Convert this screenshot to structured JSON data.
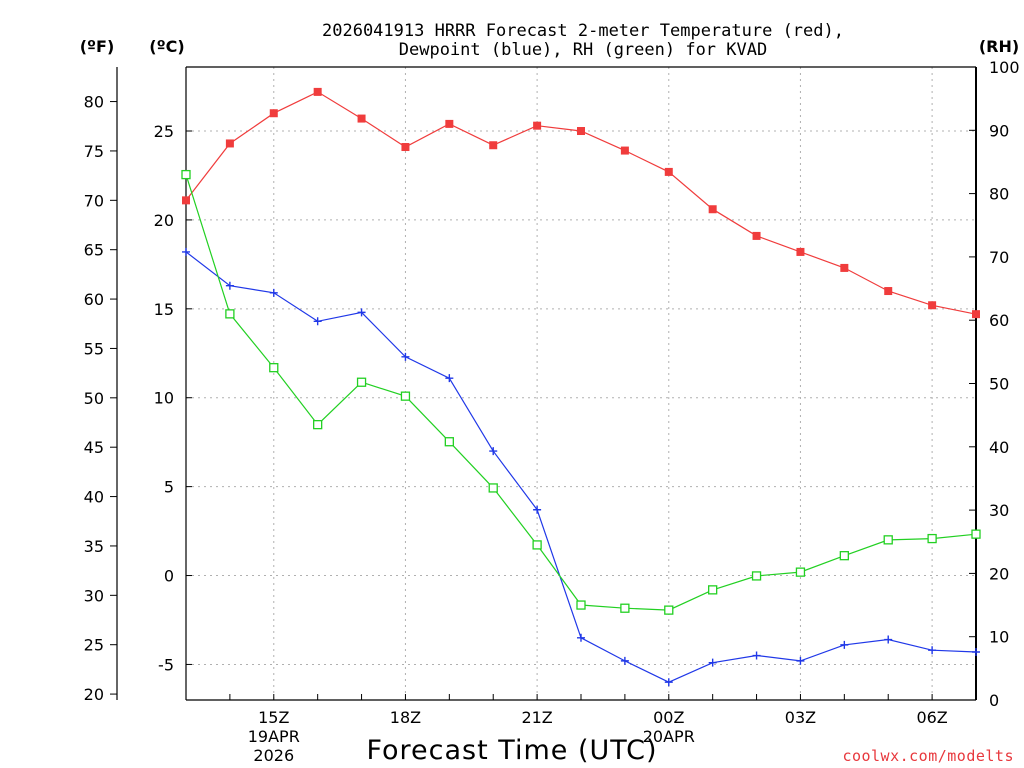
{
  "chart_data": {
    "type": "line",
    "title_line1": "2026041913 HRRR Forecast 2-meter Temperature (red),",
    "title_line2": "Dewpoint (blue), RH (green) for KVAD",
    "xlabel": "Forecast Time (UTC)",
    "credit": "coolwx.com/modelts",
    "unit_f": "(ºF)",
    "unit_c": "(ºC)",
    "unit_rh": "(RH)",
    "x_hours": [
      13,
      14,
      15,
      16,
      17,
      18,
      19,
      20,
      21,
      22,
      23,
      24,
      25,
      26,
      27,
      28,
      29,
      30,
      31
    ],
    "xlim": [
      13,
      31
    ],
    "x_ticks": [
      {
        "hour": 15,
        "label": "15Z",
        "sub1": "19APR",
        "sub2": "2026"
      },
      {
        "hour": 18,
        "label": "18Z",
        "sub1": "",
        "sub2": ""
      },
      {
        "hour": 21,
        "label": "21Z",
        "sub1": "",
        "sub2": ""
      },
      {
        "hour": 24,
        "label": "00Z",
        "sub1": "20APR",
        "sub2": ""
      },
      {
        "hour": 27,
        "label": "03Z",
        "sub1": "",
        "sub2": ""
      },
      {
        "hour": 30,
        "label": "06Z",
        "sub1": "",
        "sub2": ""
      }
    ],
    "celsius_axis": {
      "ylim": [
        -7,
        28.6
      ],
      "ticks": [
        -5,
        0,
        5,
        10,
        15,
        20,
        25
      ]
    },
    "fahrenheit_axis": {
      "ylim": [
        19.4,
        83.5
      ],
      "ticks": [
        20,
        25,
        30,
        35,
        40,
        45,
        50,
        55,
        60,
        65,
        70,
        75,
        80
      ]
    },
    "rh_axis": {
      "ylim": [
        0,
        100
      ],
      "ticks": [
        0,
        10,
        20,
        30,
        40,
        50,
        60,
        70,
        80,
        90,
        100
      ]
    },
    "series": [
      {
        "name": "Temperature",
        "color": "#f03c3c",
        "marker": "filled-square",
        "axis": "celsius",
        "values": [
          21.1,
          24.3,
          26.0,
          27.2,
          25.7,
          24.1,
          25.4,
          24.2,
          25.3,
          25.0,
          23.9,
          22.7,
          20.6,
          19.1,
          18.2,
          17.3,
          16.0,
          15.2,
          14.7
        ]
      },
      {
        "name": "Dewpoint",
        "color": "#2038e8",
        "marker": "plus",
        "axis": "celsius",
        "values": [
          18.2,
          16.3,
          15.9,
          14.3,
          14.8,
          12.3,
          11.1,
          7.0,
          3.7,
          -3.5,
          -4.8,
          -6.0,
          -4.9,
          -4.5,
          -4.8,
          -3.9,
          -3.6,
          -4.2,
          -4.3
        ]
      },
      {
        "name": "RH",
        "color": "#22d022",
        "marker": "open-square",
        "axis": "rh",
        "values": [
          83,
          61,
          52.5,
          43.5,
          50.2,
          48,
          40.8,
          33.5,
          24.5,
          15,
          14.5,
          14.2,
          17.4,
          19.6,
          20.2,
          22.8,
          25.3,
          25.5,
          26.2
        ]
      }
    ]
  }
}
